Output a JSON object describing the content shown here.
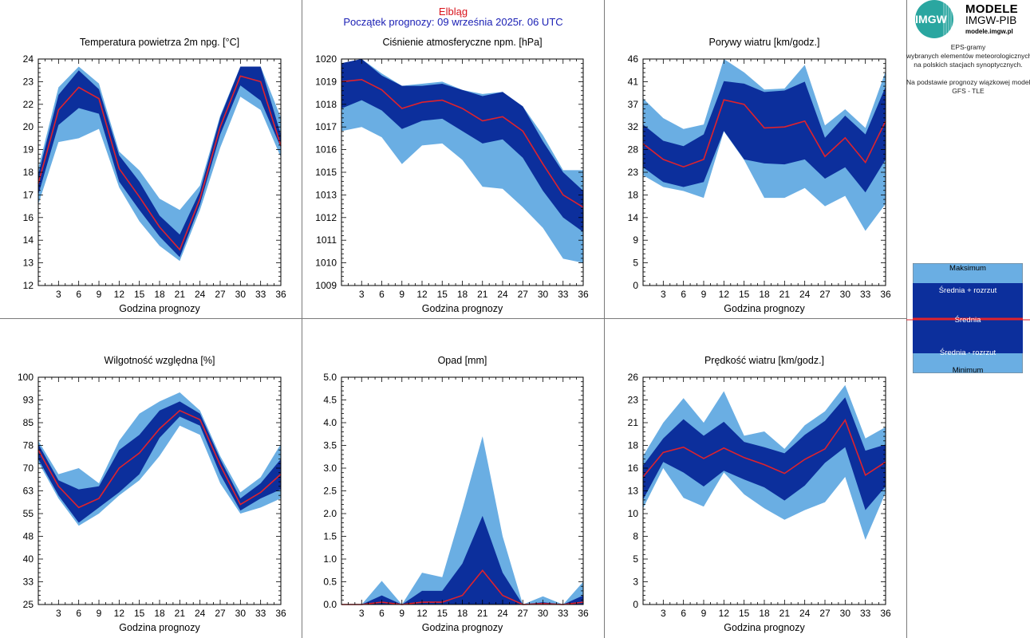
{
  "header": {
    "station": "Elbląg",
    "forecast_start": "Początek prognozy: 09 września 2025r. 06 UTC"
  },
  "branding": {
    "logo_mark": "IMGW",
    "logo_line1": "MODELE",
    "logo_line2": "IMGW-PIB",
    "logo_line3": "modele.imgw.pl",
    "info_lines": [
      "EPS-gramy",
      "wybranych elementów meteorologicznych",
      "na polskich stacjach  synoptycznych.",
      "",
      "Na podstawie prognozy wiązkowej modelu",
      "GFS - TLE"
    ]
  },
  "legend": {
    "max": "Maksimum",
    "mean_plus": "Średnia + rozrzut",
    "mean": "Średnia",
    "mean_minus": "Średnia - rozrzut",
    "min": "Minimum"
  },
  "colors": {
    "light_band": "#6aaee3",
    "dark_band": "#0c2f9c",
    "mean_line": "#e0222c",
    "frame": "#000000"
  },
  "chart_data": [
    {
      "type": "area",
      "title": "Temperatura powietrza 2m npg. [°C]",
      "xlabel": "Godzina prognozy",
      "x": [
        0,
        3,
        6,
        9,
        12,
        15,
        18,
        21,
        24,
        27,
        30,
        33,
        36
      ],
      "ylim": [
        12,
        24
      ],
      "yticks": [
        "12",
        "13",
        "14",
        "16",
        "17",
        "18",
        "19",
        "20",
        "22",
        "23",
        "24"
      ],
      "ytick_values": [
        12,
        13.2,
        14.4,
        15.6,
        16.8,
        18,
        19.2,
        20.4,
        21.6,
        22.8,
        24
      ],
      "series": {
        "min": [
          16.3,
          19.6,
          19.8,
          20.3,
          17.2,
          15.4,
          14.1,
          13.3,
          16.0,
          19.3,
          22.0,
          21.3,
          18.8
        ],
        "low": [
          16.8,
          20.5,
          21.4,
          21.1,
          17.5,
          16.0,
          14.6,
          13.5,
          16.3,
          20.0,
          22.6,
          21.8,
          19.3
        ],
        "mean": [
          17.4,
          21.3,
          22.5,
          21.9,
          18.2,
          16.7,
          15.1,
          13.9,
          16.6,
          20.4,
          23.1,
          22.8,
          19.4
        ],
        "high": [
          17.9,
          22.1,
          23.4,
          22.4,
          18.9,
          17.5,
          15.7,
          14.7,
          17.0,
          20.9,
          23.6,
          23.6,
          20.0
        ],
        "max": [
          18.2,
          22.5,
          23.6,
          22.7,
          19.1,
          18.1,
          16.6,
          16.0,
          17.3,
          21.0,
          23.6,
          23.6,
          20.9
        ]
      }
    },
    {
      "type": "area",
      "title": "Ciśnienie atmosferyczne npm. [hPa]",
      "xlabel": "Godzina prognozy",
      "x": [
        0,
        3,
        6,
        9,
        12,
        15,
        18,
        21,
        24,
        27,
        30,
        33,
        36
      ],
      "ylim": [
        1009,
        1020
      ],
      "yticks": [
        "1009",
        "1010",
        "1011",
        "1012",
        "1013",
        "1015",
        "1016",
        "1017",
        "1018",
        "1019",
        "1020"
      ],
      "ytick_values": [
        1009,
        1010.1,
        1011.2,
        1012.3,
        1013.4,
        1014.5,
        1015.6,
        1016.7,
        1017.8,
        1018.9,
        1020
      ],
      "series": {
        "min": [
          1016.5,
          1016.7,
          1016.2,
          1014.9,
          1015.8,
          1015.9,
          1015.1,
          1013.8,
          1013.7,
          1012.8,
          1011.8,
          1010.3,
          1010.1
        ],
        "low": [
          1017.6,
          1018.0,
          1017.5,
          1016.6,
          1017.0,
          1017.1,
          1016.5,
          1015.9,
          1016.1,
          1015.2,
          1013.6,
          1012.3,
          1011.6
        ],
        "mean": [
          1018.9,
          1019.0,
          1018.5,
          1017.6,
          1017.9,
          1018.0,
          1017.6,
          1017.0,
          1017.2,
          1016.5,
          1014.9,
          1013.4,
          1012.8
        ],
        "high": [
          1019.8,
          1020.0,
          1019.2,
          1018.7,
          1018.7,
          1018.8,
          1018.5,
          1018.2,
          1018.4,
          1017.7,
          1016.0,
          1014.5,
          1013.6
        ],
        "max": [
          1019.8,
          1020.0,
          1019.3,
          1018.7,
          1018.8,
          1018.9,
          1018.5,
          1018.3,
          1018.4,
          1017.7,
          1016.3,
          1014.6,
          1014.6
        ]
      }
    },
    {
      "type": "area",
      "title": "Porywy wiatru [km/godz.]",
      "xlabel": "Godzina prognozy",
      "x": [
        0,
        3,
        6,
        9,
        12,
        15,
        18,
        21,
        24,
        27,
        30,
        33,
        36
      ],
      "ylim": [
        0,
        46
      ],
      "yticks": [
        "0",
        "5",
        "9",
        "14",
        "18",
        "23",
        "28",
        "32",
        "37",
        "41",
        "46"
      ],
      "ytick_values": [
        0,
        4.6,
        9.2,
        13.8,
        18.4,
        23,
        27.6,
        32.2,
        36.8,
        41.4,
        46
      ],
      "series": {
        "min": [
          22.4,
          20.0,
          19.2,
          17.8,
          31.3,
          25.5,
          17.8,
          17.8,
          19.8,
          16.1,
          18.2,
          11.1,
          16.6
        ],
        "low": [
          24.0,
          21.0,
          20.0,
          21.0,
          31.4,
          25.6,
          24.8,
          24.6,
          25.6,
          21.7,
          24.0,
          18.9,
          25.6
        ],
        "mean": [
          28.8,
          25.6,
          24.1,
          25.6,
          37.7,
          36.8,
          32.0,
          32.2,
          33.4,
          26.2,
          30.0,
          25.0,
          33.4
        ],
        "high": [
          32.7,
          29.4,
          28.3,
          30.7,
          41.5,
          41.0,
          39.3,
          39.6,
          41.4,
          30.0,
          34.5,
          30.7,
          40.4
        ],
        "max": [
          38.0,
          34.0,
          31.8,
          32.7,
          46.0,
          43.3,
          39.8,
          40.0,
          44.8,
          32.5,
          35.8,
          32.0,
          43.5
        ]
      }
    },
    {
      "type": "area",
      "title": "Wilgotność względna [%]",
      "xlabel": "Godzina prognozy",
      "x": [
        0,
        3,
        6,
        9,
        12,
        15,
        18,
        21,
        24,
        27,
        30,
        33,
        36
      ],
      "ylim": [
        25,
        100
      ],
      "yticks": [
        "25",
        "33",
        "40",
        "48",
        "55",
        "63",
        "70",
        "78",
        "85",
        "93",
        "100"
      ],
      "ytick_values": [
        25,
        32.5,
        40,
        47.5,
        55,
        62.5,
        70,
        77.5,
        85,
        92.5,
        100
      ],
      "series": {
        "min": [
          72.0,
          60.0,
          51.0,
          55.0,
          61.0,
          66.0,
          74.0,
          84.0,
          81.0,
          65.0,
          55.0,
          57.0,
          60.0
        ],
        "low": [
          73.0,
          61.0,
          52.0,
          57.0,
          62.0,
          68.0,
          80.0,
          87.0,
          84.0,
          68.0,
          56.0,
          60.0,
          63.0
        ],
        "mean": [
          76.0,
          64.0,
          57.0,
          60.0,
          70.0,
          75.0,
          83.0,
          89.0,
          86.0,
          71.0,
          58.0,
          62.0,
          68.0
        ],
        "high": [
          78.0,
          66.0,
          63.0,
          64.0,
          76.0,
          81.0,
          89.0,
          92.0,
          88.0,
          73.0,
          60.0,
          65.0,
          73.0
        ],
        "max": [
          79.0,
          68.0,
          70.0,
          65.0,
          79.0,
          88.0,
          92.0,
          95.0,
          89.0,
          74.0,
          62.0,
          67.0,
          78.0
        ]
      }
    },
    {
      "type": "area",
      "title": "Opad [mm]",
      "xlabel": "Godzina prognozy",
      "x": [
        0,
        3,
        6,
        9,
        12,
        15,
        18,
        21,
        24,
        27,
        30,
        33,
        36
      ],
      "ylim": [
        0,
        5
      ],
      "yticks": [
        "0.0",
        "0.5",
        "1.0",
        "1.5",
        "2.0",
        "2.5",
        "3.0",
        "3.5",
        "4.0",
        "4.5",
        "5.0"
      ],
      "ytick_values": [
        0,
        0.5,
        1,
        1.5,
        2,
        2.5,
        3,
        3.5,
        4,
        4.5,
        5
      ],
      "series": {
        "min": [
          0,
          0,
          0,
          0,
          0,
          0,
          0,
          0,
          0,
          0,
          0,
          0,
          0
        ],
        "low": [
          0,
          0,
          0,
          0,
          0,
          0,
          0,
          0,
          0,
          0,
          0,
          0,
          0
        ],
        "mean": [
          0,
          0,
          0.05,
          0,
          0.05,
          0.05,
          0.2,
          0.75,
          0.2,
          0,
          0.02,
          0,
          0.05
        ],
        "high": [
          0,
          0,
          0.2,
          0,
          0.3,
          0.3,
          0.9,
          1.95,
          0.7,
          0,
          0.05,
          0,
          0.2
        ],
        "max": [
          0,
          0,
          0.52,
          0,
          0.7,
          0.6,
          2.1,
          3.7,
          1.5,
          0,
          0.18,
          0,
          0.5
        ]
      }
    },
    {
      "type": "area",
      "title": "Prędkość wiatru [km/godz.]",
      "xlabel": "Godzina prognozy",
      "x": [
        0,
        3,
        6,
        9,
        12,
        15,
        18,
        21,
        24,
        27,
        30,
        33,
        36
      ],
      "ylim": [
        0,
        26
      ],
      "yticks": [
        "0",
        "3",
        "5",
        "8",
        "10",
        "13",
        "16",
        "18",
        "21",
        "23",
        "26"
      ],
      "ytick_values": [
        0,
        2.6,
        5.2,
        7.8,
        10.4,
        13,
        15.6,
        18.2,
        20.8,
        23.4,
        26
      ],
      "series": {
        "min": [
          11.0,
          15.6,
          12.2,
          11.2,
          15.1,
          12.6,
          11.0,
          9.7,
          10.8,
          11.7,
          14.6,
          7.4,
          12.8
        ],
        "low": [
          12.0,
          16.3,
          15.1,
          13.5,
          15.3,
          14.3,
          13.4,
          11.9,
          13.6,
          16.2,
          18.0,
          10.8,
          13.5
        ],
        "mean": [
          14.6,
          17.4,
          18.0,
          16.7,
          17.9,
          16.8,
          16.0,
          15.0,
          16.6,
          17.8,
          21.1,
          14.8,
          16.3
        ],
        "high": [
          15.9,
          19.0,
          21.2,
          19.3,
          20.9,
          18.6,
          18.0,
          17.3,
          19.4,
          21.0,
          23.7,
          17.6,
          18.3
        ],
        "max": [
          17.0,
          20.8,
          23.6,
          20.8,
          24.4,
          19.3,
          19.8,
          17.8,
          20.5,
          22.1,
          25.1,
          19.0,
          20.3
        ]
      }
    }
  ]
}
